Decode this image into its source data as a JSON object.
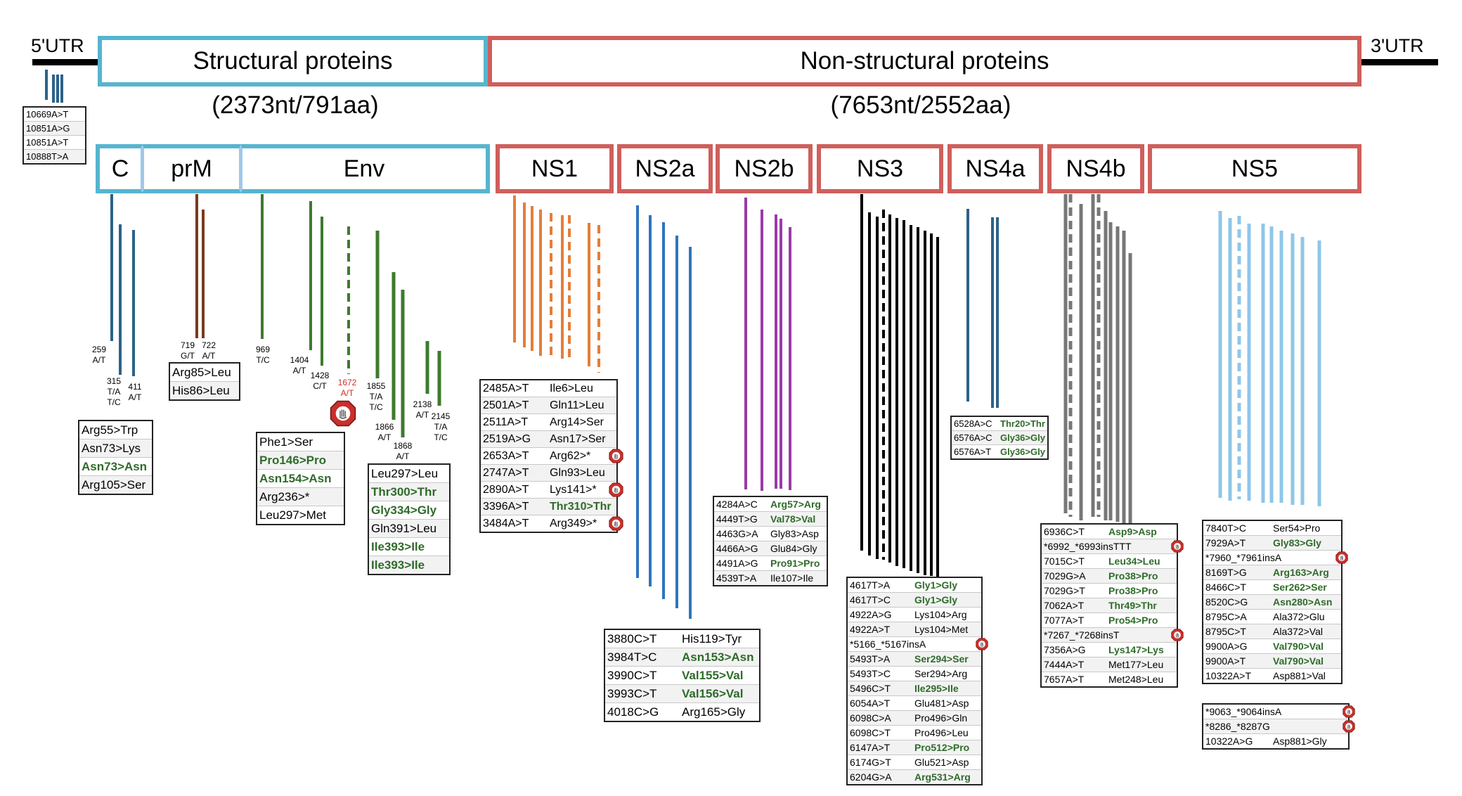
{
  "utr5": "5'UTR",
  "utr3": "3'UTR",
  "regions": {
    "structural": {
      "label": "Structural proteins",
      "size": "(2373nt/791aa)"
    },
    "nonstructural": {
      "label": "Non-structural proteins",
      "size": "(7653nt/2552aa)"
    }
  },
  "colors": {
    "structural": "#56b5cf",
    "nonstructural": "#cf5f5c",
    "synonymous": "#2f6b2a",
    "stop_icon": "#c9302c"
  },
  "genes": [
    "C",
    "prM",
    "Env",
    "NS1",
    "NS2a",
    "NS2b",
    "NS3",
    "NS4a",
    "NS4b",
    "NS5"
  ],
  "pos_labels": {
    "p259": [
      "259",
      "A/T"
    ],
    "p315": [
      "315",
      "T/A",
      "T/C"
    ],
    "p411": [
      "411",
      "A/T"
    ],
    "p719": [
      "719",
      "G/T"
    ],
    "p722": [
      "722",
      "A/T"
    ],
    "p969": [
      "969",
      "T/C"
    ],
    "p1404": [
      "1404",
      "A/T"
    ],
    "p1428": [
      "1428",
      "C/T"
    ],
    "p1672": [
      "1672",
      "A/T"
    ],
    "p1855": [
      "1855",
      "T/A",
      "T/C"
    ],
    "p1866": [
      "1866",
      "A/T"
    ],
    "p1868": [
      "1868",
      "A/T"
    ],
    "p2138": [
      "2138",
      "A/T"
    ],
    "p2145": [
      "2145",
      "T/A",
      "T/C"
    ]
  },
  "tables": {
    "utr5": [
      {
        "c1": "10669A>T"
      },
      {
        "c1": "10851A>G"
      },
      {
        "c1": "10851A>T"
      },
      {
        "c1": "10888T>A"
      }
    ],
    "C": [
      {
        "c1": "Arg55>Trp"
      },
      {
        "c1": "Asn73>Lys"
      },
      {
        "c1": "Asn73>Asn",
        "syn": true
      },
      {
        "c1": "Arg105>Ser"
      }
    ],
    "prM": [
      {
        "c1": "Arg85>Leu"
      },
      {
        "c1": "His86>Leu"
      }
    ],
    "Env1": [
      {
        "c1": "Phe1>Ser"
      },
      {
        "c1": "Pro146>Pro",
        "syn": true
      },
      {
        "c1": "Asn154>Asn",
        "syn": true
      },
      {
        "c1": "Arg236>*"
      },
      {
        "c1": "Leu297>Met"
      }
    ],
    "Env2": [
      {
        "c1": "Leu297>Leu"
      },
      {
        "c1": "Thr300>Thr",
        "syn": true
      },
      {
        "c1": "Gly334>Gly",
        "syn": true
      },
      {
        "c1": "Gln391>Leu"
      },
      {
        "c1": "Ile393>Ile",
        "syn": true
      },
      {
        "c1": "Ile393>Ile",
        "syn": true
      }
    ],
    "NS1": [
      {
        "c1": "2485A>T",
        "c2": "Ile6>Leu"
      },
      {
        "c1": "2501A>T",
        "c2": "Gln11>Leu"
      },
      {
        "c1": "2511A>T",
        "c2": "Arg14>Ser"
      },
      {
        "c1": "2519A>G",
        "c2": "Asn17>Ser"
      },
      {
        "c1": "2653A>T",
        "c2": "Arg62>*",
        "stop": true
      },
      {
        "c1": "2747A>T",
        "c2": "Gln93>Leu"
      },
      {
        "c1": "2890A>T",
        "c2": "Lys141>*",
        "stop": true
      },
      {
        "c1": "3396A>T",
        "c2": "Thr310>Thr",
        "syn": true
      },
      {
        "c1": "3484A>T",
        "c2": "Arg349>*",
        "stop": true
      }
    ],
    "NS2a": [
      {
        "c1": "3880C>T",
        "c2": "His119>Tyr"
      },
      {
        "c1": "3984T>C",
        "c2": "Asn153>Asn",
        "syn": true
      },
      {
        "c1": "3990C>T",
        "c2": "Val155>Val",
        "syn": true
      },
      {
        "c1": "3993C>T",
        "c2": "Val156>Val",
        "syn": true
      },
      {
        "c1": "4018C>G",
        "c2": "Arg165>Gly"
      }
    ],
    "NS2b": [
      {
        "c1": "4284A>C",
        "c2": "Arg57>Arg",
        "syn": true
      },
      {
        "c1": "4449T>G",
        "c2": "Val78>Val",
        "syn": true
      },
      {
        "c1": "4463G>A",
        "c2": "Gly83>Asp"
      },
      {
        "c1": "4466A>G",
        "c2": "Glu84>Gly"
      },
      {
        "c1": "4491A>G",
        "c2": "Pro91>Pro",
        "syn": true
      },
      {
        "c1": "4539T>A",
        "c2": "Ile107>Ile"
      }
    ],
    "NS3": [
      {
        "c1": "4617T>A",
        "c2": "Gly1>Gly",
        "syn": true
      },
      {
        "c1": "4617T>C",
        "c2": "Gly1>Gly",
        "syn": true
      },
      {
        "c1": "4922A>G",
        "c2": "Lys104>Arg"
      },
      {
        "c1": "4922A>T",
        "c2": "Lys104>Met"
      },
      {
        "c1": "*5166_*5167insA",
        "c2": "",
        "stop": true
      },
      {
        "c1": "5493T>A",
        "c2": "Ser294>Ser",
        "syn": true
      },
      {
        "c1": "5493T>C",
        "c2": "Ser294>Arg"
      },
      {
        "c1": "5496C>T",
        "c2": "Ile295>Ile",
        "syn": true
      },
      {
        "c1": "6054A>T",
        "c2": "Glu481>Asp"
      },
      {
        "c1": "6098C>A",
        "c2": "Pro496>Gln"
      },
      {
        "c1": "6098C>T",
        "c2": "Pro496>Leu"
      },
      {
        "c1": "6147A>T",
        "c2": "Pro512>Pro",
        "syn": true
      },
      {
        "c1": "6174G>T",
        "c2": "Glu521>Asp"
      },
      {
        "c1": "6204G>A",
        "c2": "Arg531>Arg",
        "syn": true
      }
    ],
    "NS4a": [
      {
        "c1": "6528A>C",
        "c2": "Thr20>Thr",
        "syn": true
      },
      {
        "c1": "6576A>C",
        "c2": "Gly36>Gly",
        "syn": true
      },
      {
        "c1": "6576A>T",
        "c2": "Gly36>Gly",
        "syn": true
      }
    ],
    "NS4b": [
      {
        "c1": "6936C>T",
        "c2": "Asp9>Asp",
        "syn": true
      },
      {
        "c1": "*6992_*6993insTTT",
        "c2": "",
        "stop": true
      },
      {
        "c1": "7015C>T",
        "c2": "Leu34>Leu",
        "syn": true
      },
      {
        "c1": "7029G>A",
        "c2": "Pro38>Pro",
        "syn": true
      },
      {
        "c1": "7029G>T",
        "c2": "Pro38>Pro",
        "syn": true
      },
      {
        "c1": "7062A>T",
        "c2": "Thr49>Thr",
        "syn": true
      },
      {
        "c1": "7077A>T",
        "c2": "Pro54>Pro",
        "syn": true
      },
      {
        "c1": "*7267_*7268insT",
        "c2": "",
        "stop": true
      },
      {
        "c1": "7356A>G",
        "c2": "Lys147>Lys",
        "syn": true
      },
      {
        "c1": "7444A>T",
        "c2": "Met177>Leu"
      },
      {
        "c1": "7657A>T",
        "c2": "Met248>Leu"
      }
    ],
    "NS5a": [
      {
        "c1": "7840T>C",
        "c2": "Ser54>Pro"
      },
      {
        "c1": "7929A>T",
        "c2": "Gly83>Gly",
        "syn": true
      },
      {
        "c1": "*7960_*7961insA",
        "c2": "",
        "stop": true
      },
      {
        "c1": "8169T>G",
        "c2": "Arg163>Arg",
        "syn": true
      },
      {
        "c1": "8466C>T",
        "c2": "Ser262>Ser",
        "syn": true
      },
      {
        "c1": "8520C>G",
        "c2": "Asn280>Asn",
        "syn": true
      },
      {
        "c1": "8795C>A",
        "c2": "Ala372>Glu"
      },
      {
        "c1": "8795C>T",
        "c2": "Ala372>Val"
      },
      {
        "c1": "9900A>G",
        "c2": "Val790>Val",
        "syn": true
      },
      {
        "c1": "9900A>T",
        "c2": "Val790>Val",
        "syn": true
      },
      {
        "c1": "10322A>T",
        "c2": "Asp881>Val"
      }
    ],
    "NS5b": [
      {
        "c1": "*9063_*9064insA",
        "c2": "",
        "stop": true
      },
      {
        "c1": "*8286_*8287G",
        "c2": "",
        "stop": true
      },
      {
        "c1": "10322A>G",
        "c2": "Asp881>Gly"
      }
    ]
  }
}
